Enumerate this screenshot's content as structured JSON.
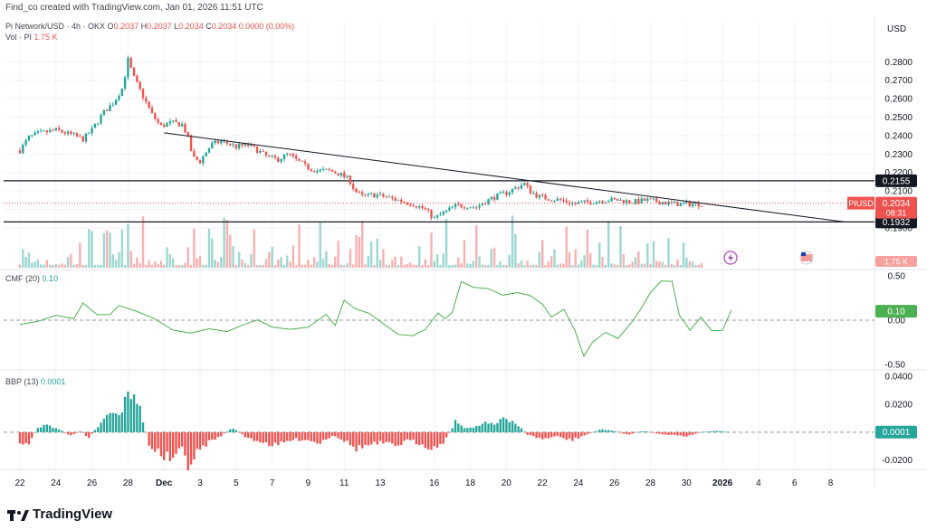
{
  "credit": "Find_co created with TradingView.com, Jan 01, 2026 11:51 UTC",
  "header": {
    "symbol": "Pi Network/USD · 4h · OKX",
    "ohlc": [
      {
        "k": "O",
        "v": "0.2037"
      },
      {
        "k": "H",
        "v": "0.2037"
      },
      {
        "k": "L",
        "v": "0.2034"
      },
      {
        "k": "C",
        "v": "0.2034"
      }
    ],
    "change": "0.0000 (0.00%)",
    "vol_label": "Vol · PI",
    "vol_value": "1.75 K"
  },
  "cmf": {
    "label": "CMF (20)",
    "value": "0.10"
  },
  "bbp": {
    "label": "BBP (13)",
    "value": "0.0001"
  },
  "currency": "USD",
  "brand": "TradingView",
  "colors": {
    "up": "#26a69a",
    "down": "#ef5350",
    "line": "#26a69a",
    "cmf_line": "#4caf50",
    "trend": "#131722",
    "grid": "#f0f3fa"
  },
  "chart_data": [
    {
      "type": "candlestick",
      "title": "Pi Network/USD · 4h · OKX",
      "ylabel": "USD",
      "ylim": [
        0.188,
        0.288
      ],
      "y_ticks": [
        "0.2800",
        "0.2700",
        "0.2600",
        "0.2500",
        "0.2400",
        "0.2300",
        "0.2200",
        "0.2100",
        "0.2000",
        "0.1900"
      ],
      "x_ticks": [
        "22",
        "24",
        "26",
        "28",
        "Dec",
        "3",
        "5",
        "7",
        "9",
        "11",
        "13",
        "16",
        "18",
        "20",
        "22",
        "24",
        "26",
        "28",
        "30",
        "2026",
        "4",
        "6",
        "8"
      ],
      "x_tick_units": [
        0,
        2,
        4,
        6,
        8,
        10,
        12,
        14,
        16,
        18,
        20,
        23,
        25,
        27,
        29,
        31,
        33,
        35,
        37,
        39,
        41,
        43,
        45
      ],
      "price_path": [
        [
          0,
          0.232
        ],
        [
          0.5,
          0.239
        ],
        [
          1,
          0.241
        ],
        [
          2,
          0.243
        ],
        [
          3,
          0.24
        ],
        [
          3.5,
          0.238
        ],
        [
          4,
          0.243
        ],
        [
          4.6,
          0.252
        ],
        [
          5.2,
          0.258
        ],
        [
          5.7,
          0.266
        ],
        [
          6.0,
          0.281
        ],
        [
          6.3,
          0.272
        ],
        [
          6.8,
          0.262
        ],
        [
          7.3,
          0.252
        ],
        [
          7.8,
          0.245
        ],
        [
          8.4,
          0.247
        ],
        [
          9.0,
          0.246
        ],
        [
          9.3,
          0.24
        ],
        [
          9.6,
          0.228
        ],
        [
          10,
          0.226
        ],
        [
          10.6,
          0.235
        ],
        [
          11.2,
          0.237
        ],
        [
          12,
          0.234
        ],
        [
          12.6,
          0.235
        ],
        [
          13.2,
          0.232
        ],
        [
          13.8,
          0.228
        ],
        [
          14.3,
          0.227
        ],
        [
          14.9,
          0.23
        ],
        [
          15.3,
          0.227
        ],
        [
          15.9,
          0.223
        ],
        [
          16.5,
          0.221
        ],
        [
          17.2,
          0.221
        ],
        [
          17.8,
          0.219
        ],
        [
          18.3,
          0.216
        ],
        [
          18.6,
          0.21
        ],
        [
          19,
          0.207
        ],
        [
          19.6,
          0.208
        ],
        [
          20.2,
          0.207
        ],
        [
          21,
          0.205
        ],
        [
          21.8,
          0.203
        ],
        [
          22.5,
          0.2
        ],
        [
          23,
          0.195
        ],
        [
          23.5,
          0.198
        ],
        [
          24.2,
          0.202
        ],
        [
          24.8,
          0.202
        ],
        [
          25.3,
          0.201
        ],
        [
          25.8,
          0.204
        ],
        [
          26.4,
          0.207
        ],
        [
          27,
          0.209
        ],
        [
          27.6,
          0.212
        ],
        [
          28,
          0.214
        ],
        [
          28.3,
          0.21
        ],
        [
          28.8,
          0.207
        ],
        [
          29.3,
          0.206
        ],
        [
          30,
          0.205
        ],
        [
          30.8,
          0.203
        ],
        [
          31.6,
          0.204
        ],
        [
          32.4,
          0.205
        ],
        [
          33.2,
          0.205
        ],
        [
          34,
          0.204
        ],
        [
          34.8,
          0.205
        ],
        [
          35.6,
          0.204
        ],
        [
          36.2,
          0.203
        ],
        [
          36.8,
          0.203
        ],
        [
          37.4,
          0.203
        ],
        [
          38,
          0.203
        ]
      ],
      "candle_step": 0.1667,
      "horizontal_levels": [
        {
          "value": 0.2155,
          "label": "0.2155"
        },
        {
          "value": 0.1932,
          "label": "0.1932"
        }
      ],
      "trendline": [
        [
          8.0,
          0.2415
        ],
        [
          45.8,
          0.1932
        ]
      ],
      "last_price": {
        "label": "PIUSD",
        "value": "0.2034",
        "countdown": "08:31",
        "y": 0.2034
      },
      "volume": {
        "name": "Vol · PI",
        "last": "1.75 K"
      }
    },
    {
      "type": "line",
      "title": "CMF (20)",
      "ylim": [
        -0.55,
        0.55
      ],
      "y_ticks": [
        "0.50",
        "0.00",
        "-0.50"
      ],
      "zero_line": 0.0,
      "last_value": "0.10",
      "points": [
        [
          0,
          -0.05
        ],
        [
          1,
          -0.02
        ],
        [
          2,
          0.05
        ],
        [
          3,
          0.02
        ],
        [
          3.5,
          0.18
        ],
        [
          4.3,
          0.08
        ],
        [
          5,
          0.05
        ],
        [
          5.5,
          0.15
        ],
        [
          6.5,
          0.1
        ],
        [
          7.5,
          0.02
        ],
        [
          8.5,
          -0.1
        ],
        [
          9.5,
          -0.15
        ],
        [
          10.5,
          -0.08
        ],
        [
          11.5,
          -0.12
        ],
        [
          12.5,
          -0.05
        ],
        [
          13.2,
          0.02
        ],
        [
          14,
          -0.08
        ],
        [
          15,
          -0.12
        ],
        [
          16,
          -0.06
        ],
        [
          17,
          0.05
        ],
        [
          17.5,
          -0.05
        ],
        [
          18,
          0.22
        ],
        [
          18.6,
          0.15
        ],
        [
          19.4,
          0.06
        ],
        [
          20.2,
          -0.05
        ],
        [
          21,
          -0.15
        ],
        [
          21.8,
          -0.18
        ],
        [
          22.5,
          -0.1
        ],
        [
          23.2,
          0.08
        ],
        [
          23.6,
          0.02
        ],
        [
          24,
          0.07
        ],
        [
          24.5,
          0.42
        ],
        [
          25.2,
          0.35
        ],
        [
          26,
          0.34
        ],
        [
          26.8,
          0.3
        ],
        [
          27.6,
          0.32
        ],
        [
          28.3,
          0.28
        ],
        [
          29,
          0.18
        ],
        [
          29.5,
          0.05
        ],
        [
          30.2,
          0.12
        ],
        [
          30.8,
          -0.1
        ],
        [
          31.3,
          -0.4
        ],
        [
          31.8,
          -0.25
        ],
        [
          32.5,
          -0.15
        ],
        [
          33.2,
          -0.2
        ],
        [
          34,
          0.0
        ],
        [
          34.5,
          0.15
        ],
        [
          35,
          0.32
        ],
        [
          35.6,
          0.46
        ],
        [
          36.2,
          0.42
        ],
        [
          36.6,
          0.05
        ],
        [
          37.2,
          -0.12
        ],
        [
          37.8,
          0.02
        ],
        [
          38.4,
          -0.1
        ],
        [
          39,
          -0.12
        ],
        [
          39.5,
          0.1
        ]
      ]
    },
    {
      "type": "bar",
      "title": "BBP (13)",
      "ylim": [
        -0.026,
        0.044
      ],
      "y_ticks": [
        "0.0400",
        "0.0200",
        "-0.0200"
      ],
      "zero_line": 0.0,
      "last_value": "0.0001",
      "envelope": [
        [
          0,
          -0.01
        ],
        [
          0.5,
          -0.008
        ],
        [
          1,
          0.004
        ],
        [
          1.6,
          0.005
        ],
        [
          2.2,
          0.002
        ],
        [
          2.8,
          -0.003
        ],
        [
          3.4,
          0.001
        ],
        [
          3.8,
          -0.004
        ],
        [
          4.4,
          0.005
        ],
        [
          5,
          0.014
        ],
        [
          5.5,
          0.012
        ],
        [
          6,
          0.027
        ],
        [
          6.4,
          0.03
        ],
        [
          6.8,
          0.01
        ],
        [
          7.2,
          -0.01
        ],
        [
          8,
          -0.018
        ],
        [
          8.6,
          -0.02
        ],
        [
          9,
          -0.012
        ],
        [
          9.4,
          -0.025
        ],
        [
          9.8,
          -0.016
        ],
        [
          10.4,
          -0.008
        ],
        [
          11,
          -0.004
        ],
        [
          11.8,
          0.003
        ],
        [
          12.6,
          -0.004
        ],
        [
          13.4,
          -0.007
        ],
        [
          14.2,
          -0.01
        ],
        [
          15,
          -0.006
        ],
        [
          15.8,
          -0.005
        ],
        [
          16.6,
          -0.008
        ],
        [
          17.4,
          -0.002
        ],
        [
          18,
          -0.006
        ],
        [
          18.6,
          -0.012
        ],
        [
          19.2,
          -0.01
        ],
        [
          20,
          -0.008
        ],
        [
          20.8,
          -0.01
        ],
        [
          21.6,
          -0.006
        ],
        [
          22.4,
          -0.009
        ],
        [
          23,
          -0.012
        ],
        [
          23.6,
          -0.006
        ],
        [
          24.2,
          0.008
        ],
        [
          24.6,
          0.004
        ],
        [
          25.2,
          0.003
        ],
        [
          25.8,
          0.007
        ],
        [
          26.4,
          0.005
        ],
        [
          26.8,
          0.012
        ],
        [
          27.4,
          0.008
        ],
        [
          28.2,
          -0.002
        ],
        [
          29,
          -0.005
        ],
        [
          29.8,
          -0.003
        ],
        [
          30.6,
          -0.006
        ],
        [
          31.4,
          -0.002
        ],
        [
          32.2,
          0.002
        ],
        [
          33,
          0.001
        ],
        [
          33.8,
          -0.002
        ],
        [
          34.6,
          0.001
        ],
        [
          35.4,
          -0.001
        ],
        [
          36.2,
          -0.002
        ],
        [
          37,
          -0.003
        ],
        [
          37.8,
          0.0
        ],
        [
          38.6,
          0.001
        ],
        [
          39.5,
          0.0
        ]
      ]
    }
  ]
}
